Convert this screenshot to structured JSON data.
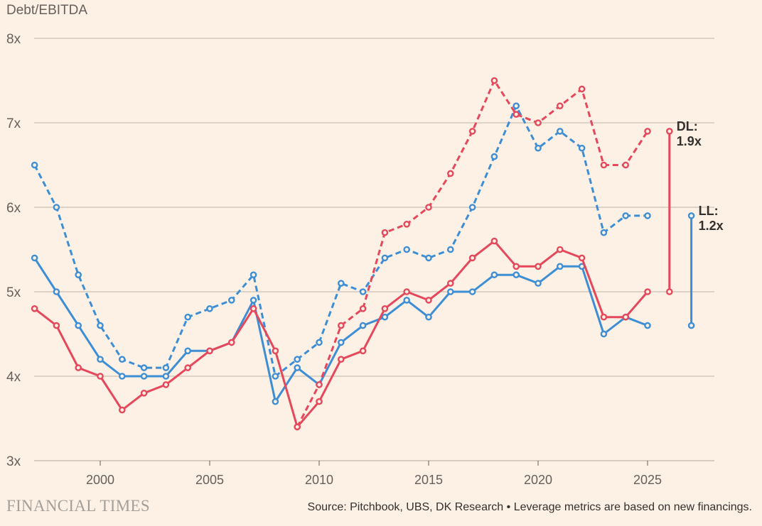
{
  "chart_data": {
    "type": "line",
    "title": "",
    "ylabel": "Debt/EBITDA",
    "xlabel": "",
    "ylim": [
      3,
      8
    ],
    "xlim": [
      1997,
      2027
    ],
    "y_ticks": [
      "3x",
      "4x",
      "5x",
      "6x",
      "7x",
      "8x"
    ],
    "x_ticks": [
      "2000",
      "2005",
      "2010",
      "2015",
      "2020",
      "2025"
    ],
    "grid": "horizontal",
    "colors": {
      "blue": "#3d8ed4",
      "red": "#e5475b",
      "grid": "#cbbfb3",
      "background": "#fdf1e5"
    },
    "series": [
      {
        "color": "#3d8ed4",
        "style": "dashed",
        "x": [
          1997,
          1998,
          1999,
          2000,
          2001,
          2002,
          2003,
          2004,
          2005,
          2006,
          2007,
          2008,
          2009,
          2010,
          2011,
          2012,
          2013,
          2014,
          2015,
          2016,
          2017,
          2018,
          2019,
          2020,
          2021,
          2022,
          2023,
          2024,
          2025
        ],
        "values": [
          6.5,
          6.0,
          5.2,
          4.6,
          4.2,
          4.1,
          4.1,
          4.7,
          4.8,
          4.9,
          5.2,
          4.0,
          4.2,
          4.4,
          5.1,
          5.0,
          5.4,
          5.5,
          5.4,
          5.5,
          6.0,
          6.6,
          7.2,
          6.7,
          6.9,
          6.7,
          5.7,
          5.9,
          5.9
        ]
      },
      {
        "color": "#3d8ed4",
        "style": "solid",
        "x": [
          1997,
          1998,
          1999,
          2000,
          2001,
          2002,
          2003,
          2004,
          2005,
          2006,
          2007,
          2008,
          2009,
          2010,
          2011,
          2012,
          2013,
          2014,
          2015,
          2016,
          2017,
          2018,
          2019,
          2020,
          2021,
          2022,
          2023,
          2024,
          2025
        ],
        "values": [
          5.4,
          5.0,
          4.6,
          4.2,
          4.0,
          4.0,
          4.0,
          4.3,
          4.3,
          4.4,
          4.9,
          3.7,
          4.1,
          3.9,
          4.4,
          4.6,
          4.7,
          4.9,
          4.7,
          5.0,
          5.0,
          5.2,
          5.2,
          5.1,
          5.3,
          5.3,
          4.5,
          4.7,
          4.6
        ]
      },
      {
        "color": "#e5475b",
        "style": "solid",
        "x": [
          1997,
          1998,
          1999,
          2000,
          2001,
          2002,
          2003,
          2004,
          2005,
          2006,
          2007,
          2008,
          2009,
          2010,
          2011,
          2012,
          2013,
          2014,
          2015,
          2016,
          2017,
          2018,
          2019,
          2020,
          2021,
          2022,
          2023,
          2024,
          2025
        ],
        "values": [
          4.8,
          4.6,
          4.1,
          4.0,
          3.6,
          3.8,
          3.9,
          4.1,
          4.3,
          4.4,
          4.8,
          4.3,
          3.4,
          3.7,
          4.2,
          4.3,
          4.8,
          5.0,
          4.9,
          5.1,
          5.4,
          5.6,
          5.3,
          5.3,
          5.5,
          5.4,
          4.7,
          4.7,
          5.0
        ]
      },
      {
        "color": "#e5475b",
        "style": "dashed",
        "x": [
          2009,
          2010,
          2011,
          2012,
          2013,
          2014,
          2015,
          2016,
          2017,
          2018,
          2019,
          2020,
          2021,
          2022,
          2023,
          2024,
          2025
        ],
        "values": [
          3.4,
          3.9,
          4.6,
          4.8,
          5.7,
          5.8,
          6.0,
          6.4,
          6.9,
          7.5,
          7.1,
          7.0,
          7.2,
          7.4,
          6.5,
          6.5,
          6.9
        ]
      }
    ],
    "annotations": [
      {
        "label": "DL:",
        "value": "1.9x",
        "color": "#e5475b",
        "x": 2026,
        "range": [
          5.0,
          6.9
        ]
      },
      {
        "label": "LL:",
        "value": "1.2x",
        "color": "#3d8ed4",
        "x": 2027,
        "range": [
          4.6,
          5.9
        ]
      }
    ]
  },
  "footer": {
    "logo": "FINANCIAL TIMES",
    "source": "Source: Pitchbook, UBS, DK Research • Leverage metrics are based on new financings."
  }
}
